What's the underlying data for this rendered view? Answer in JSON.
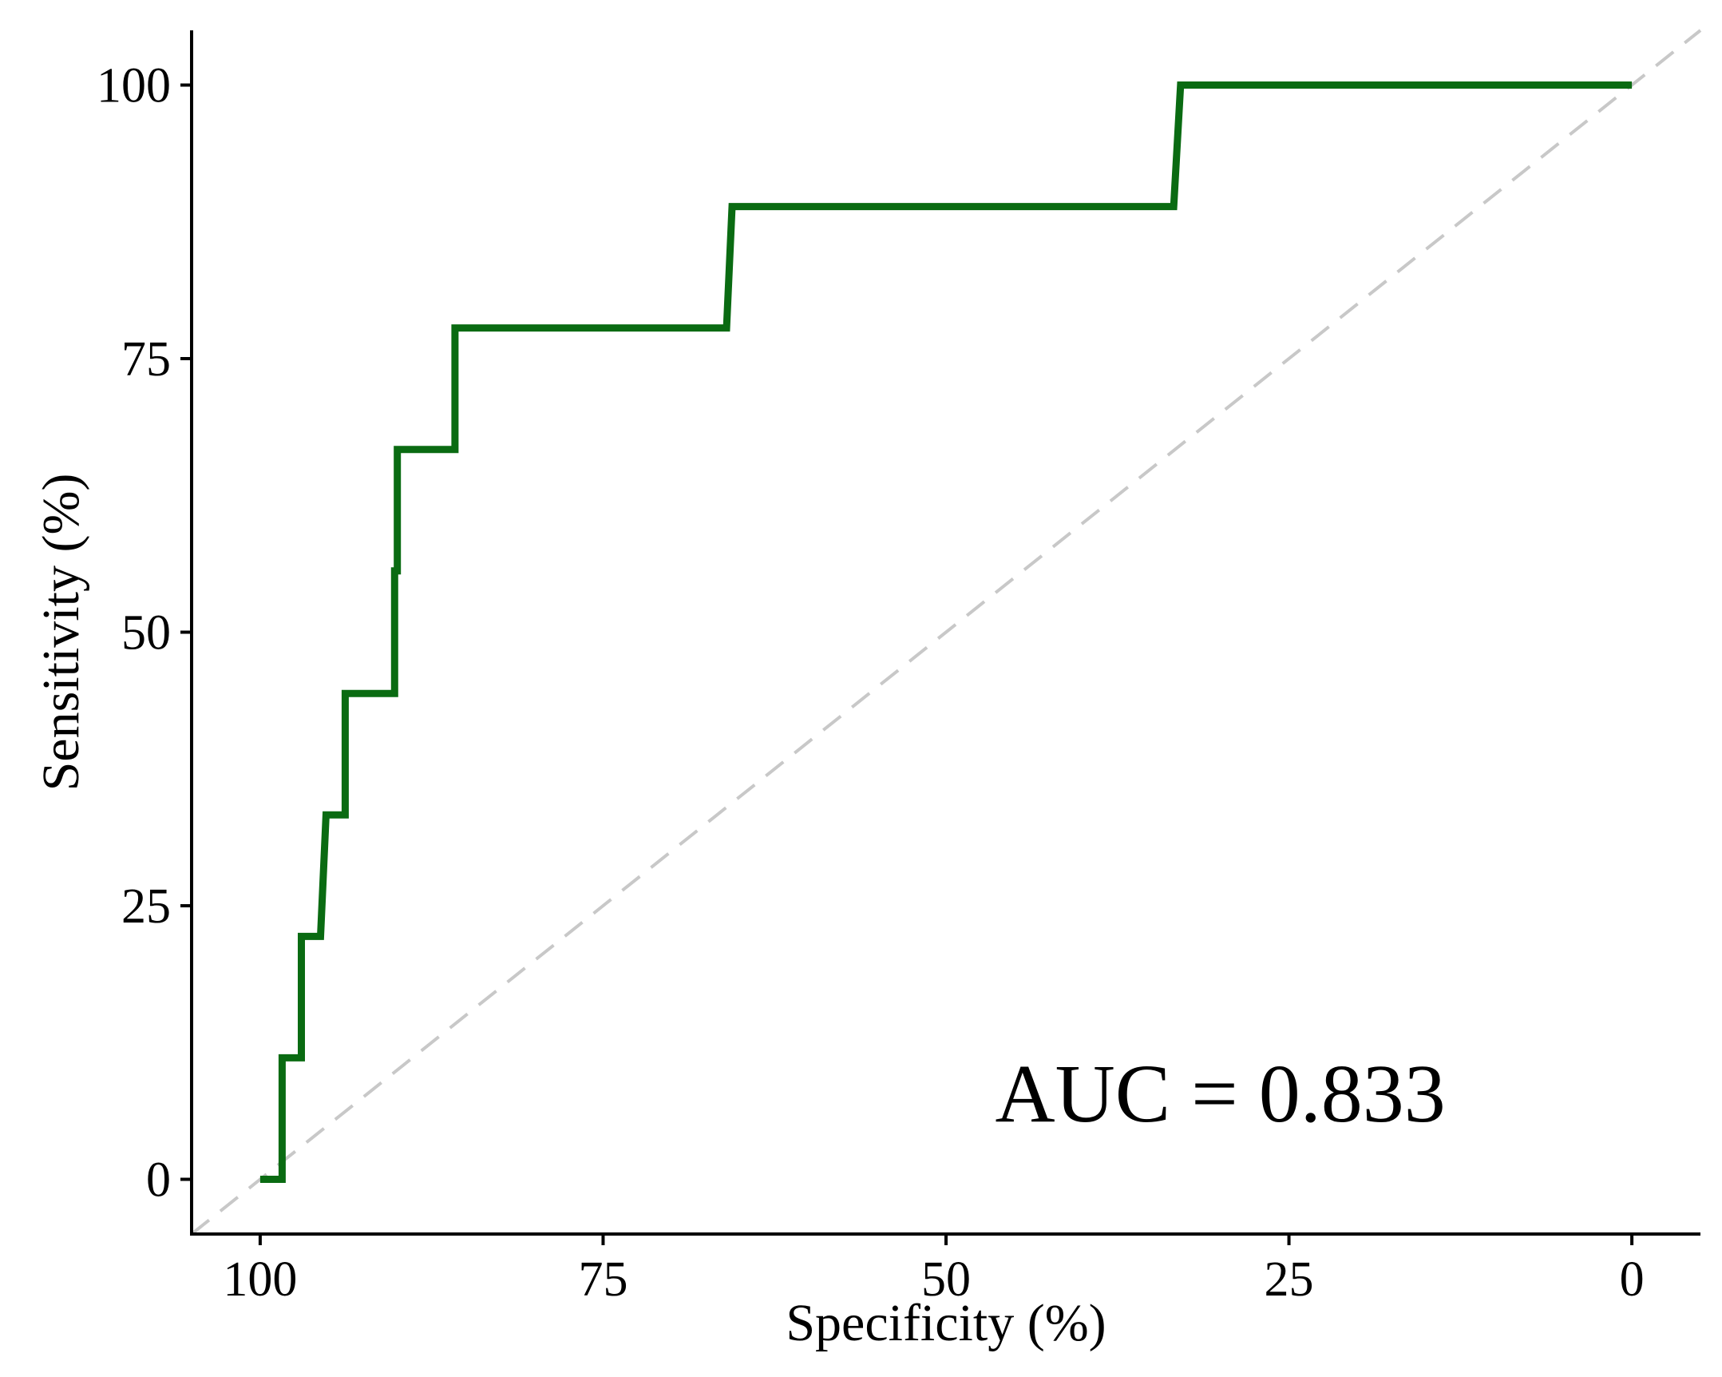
{
  "chart_data": {
    "type": "line",
    "title": "",
    "xlabel": "Specificity (%)",
    "ylabel": "Sensitivity (%)",
    "xlim": [
      105,
      -5
    ],
    "ylim": [
      -5,
      105
    ],
    "x_reversed": true,
    "x_ticks": [
      100,
      75,
      50,
      25,
      0
    ],
    "y_ticks": [
      0,
      25,
      50,
      75,
      100
    ],
    "grid": false,
    "legend": "none",
    "annotation": "AUC = 0.833",
    "series": [
      {
        "color": "#0a6b12",
        "points": [
          [
            100,
            0
          ],
          [
            98.4,
            0
          ],
          [
            98.4,
            11.1
          ],
          [
            97,
            11.1
          ],
          [
            97,
            22.2
          ],
          [
            95.6,
            22.2
          ],
          [
            95.2,
            33.3
          ],
          [
            93.8,
            33.3
          ],
          [
            93.8,
            44.4
          ],
          [
            90.2,
            44.4
          ],
          [
            90.2,
            55.6
          ],
          [
            90.0,
            55.6
          ],
          [
            90.0,
            66.7
          ],
          [
            85.8,
            66.7
          ],
          [
            85.8,
            77.8
          ],
          [
            66.0,
            77.8
          ],
          [
            65.6,
            88.9
          ],
          [
            33.4,
            88.9
          ],
          [
            32.9,
            100
          ],
          [
            0,
            100
          ]
        ]
      }
    ],
    "reference_line": {
      "from": [
        100,
        0
      ],
      "to": [
        0,
        100
      ],
      "style": "dashed",
      "color": "#c8c8c8"
    }
  }
}
